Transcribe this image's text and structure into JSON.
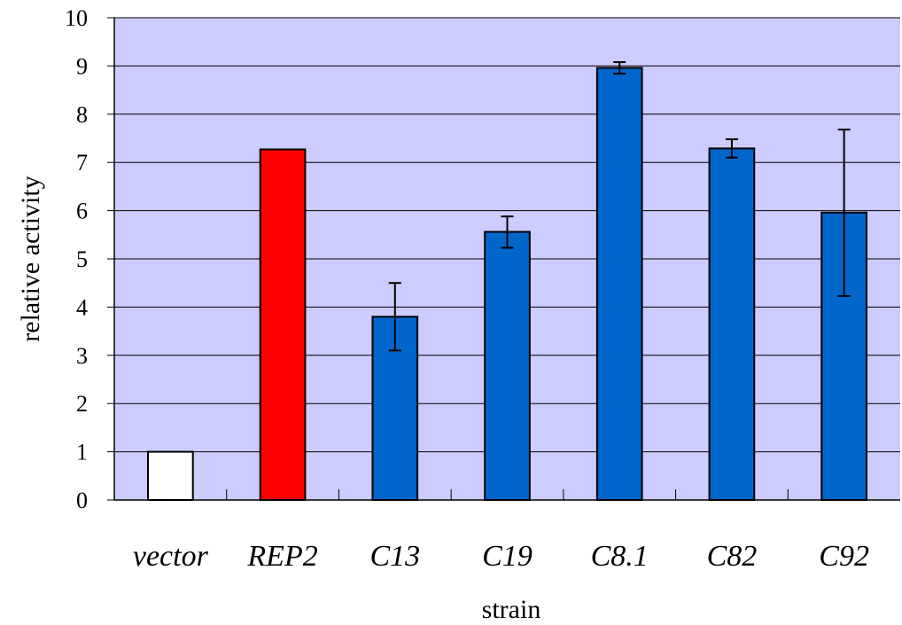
{
  "chart_data": {
    "type": "bar",
    "title": "",
    "xlabel": "strain",
    "ylabel": "relative activity",
    "ylim": [
      0,
      10
    ],
    "yticks": [
      0,
      1,
      2,
      3,
      4,
      5,
      6,
      7,
      8,
      9,
      10
    ],
    "grid": "horizontal",
    "categories": [
      "vector",
      "REP2",
      "C13",
      "C19",
      "C8.1",
      "C82",
      "C92"
    ],
    "values": [
      1.0,
      7.27,
      3.8,
      5.56,
      8.96,
      7.29,
      5.96
    ],
    "error_low": [
      null,
      null,
      3.1,
      5.23,
      8.84,
      7.1,
      4.23
    ],
    "error_high": [
      null,
      null,
      4.5,
      5.88,
      9.08,
      7.48,
      7.68
    ],
    "bar_colors": [
      "#ffffff",
      "#ff0000",
      "#0066cc",
      "#0066cc",
      "#0066cc",
      "#0066cc",
      "#0066cc"
    ],
    "plot_background": "#ccccff"
  }
}
